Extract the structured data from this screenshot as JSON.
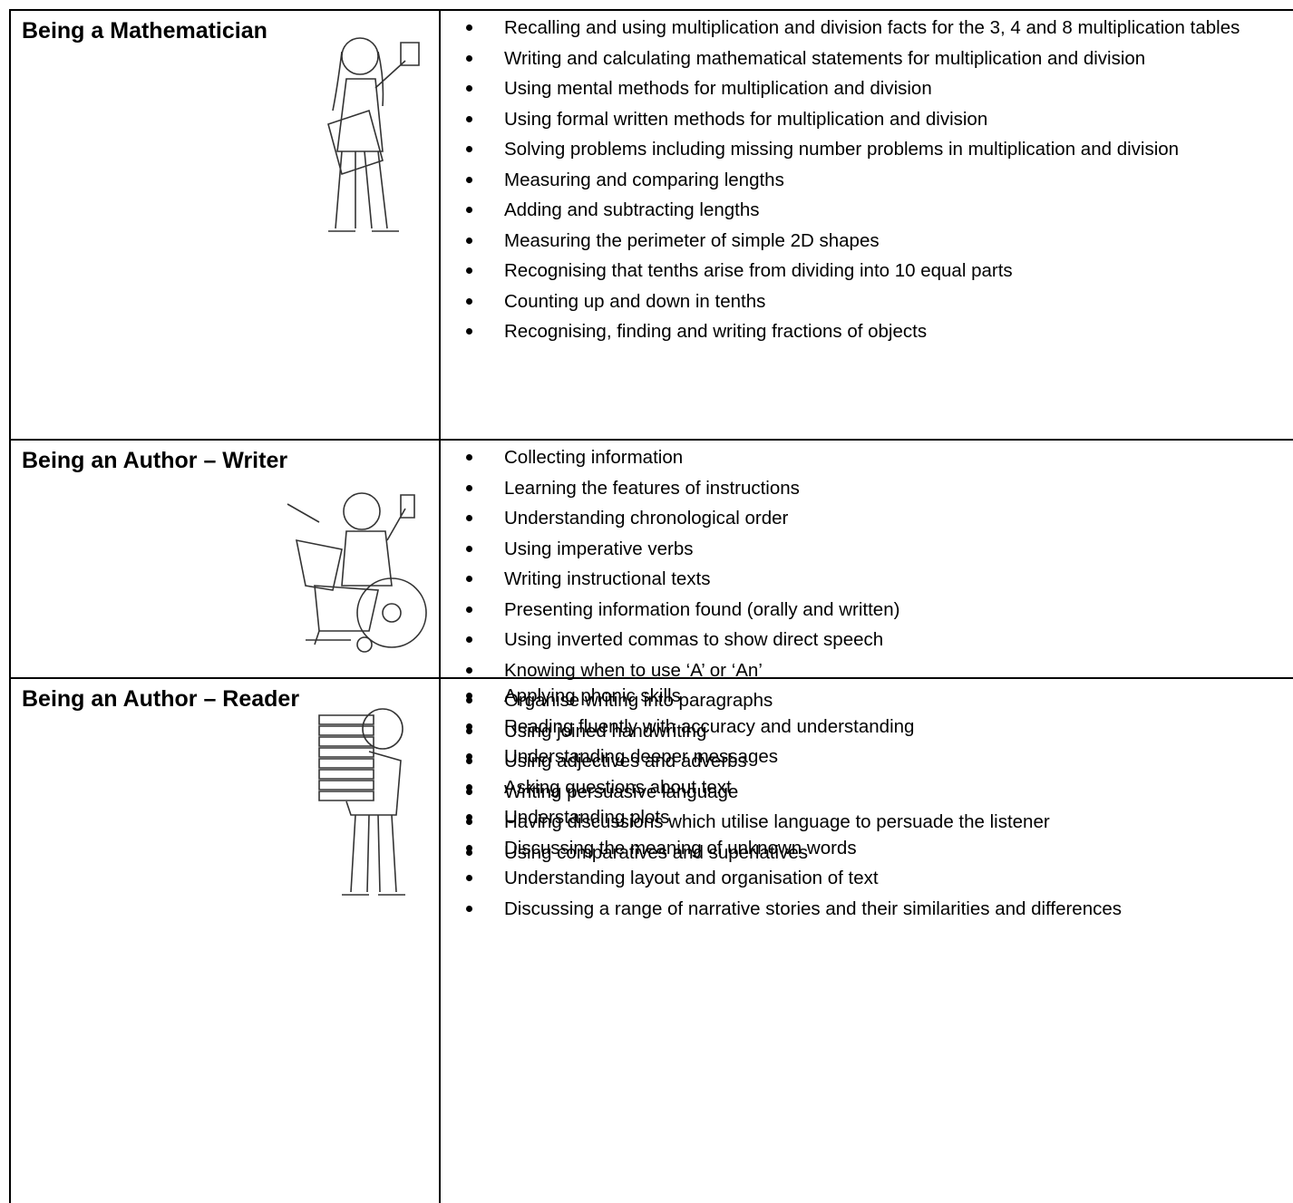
{
  "rows": [
    {
      "title": "Being a Mathematician",
      "items": [
        "Recalling and using multiplication and division facts for the 3, 4 and 8 multiplication tables",
        "Writing and calculating mathematical statements for multiplication and division",
        "Using mental methods for multiplication and division",
        "Using formal written methods for multiplication and division",
        "Solving problems including missing number problems in multiplication and division",
        "Measuring and comparing lengths",
        "Adding and subtracting lengths",
        "Measuring the perimeter of simple 2D shapes",
        "Recognising that tenths arise from dividing into 10 equal parts",
        "Counting up and down in tenths",
        "Recognising, finding and writing fractions of objects"
      ]
    },
    {
      "title": "Being an Author – Writer",
      "items": [
        "Collecting information",
        "Learning the features of instructions",
        "Understanding chronological order",
        "Using imperative verbs",
        "Writing instructional texts",
        "Presenting information found (orally and written)",
        "Using inverted commas to show direct speech",
        "Knowing when to use ‘A’ or ‘An’",
        "Organise writing into paragraphs",
        "Using joined handwriting",
        "Using adjectives and adverbs",
        "Writing persuasive language",
        "Having discussions which utilise language to persuade the listener",
        "Using comparatives and superlatives"
      ]
    },
    {
      "title": "Being an Author – Reader",
      "items": [
        "Applying phonic skills",
        "Reading fluently with accuracy and understanding",
        "Understanding deeper messages",
        "Asking questions about text",
        "Understanding plots",
        "Discussing the meaning of unknown words",
        "Understanding layout and organisation of text",
        "Discussing a range of narrative stories and their similarities and differences"
      ]
    }
  ]
}
